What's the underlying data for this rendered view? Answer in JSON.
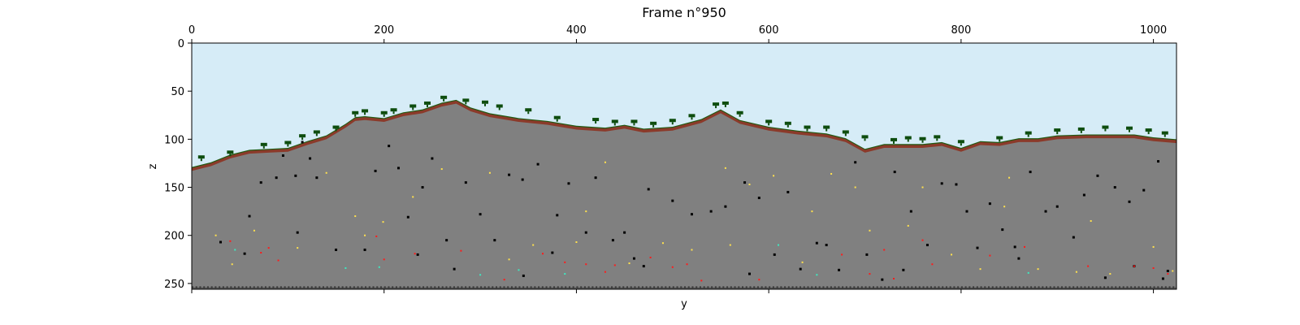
{
  "chart_data": {
    "type": "heatmap",
    "title": "Frame n°950",
    "xlabel": "y",
    "ylabel": "z",
    "xlim": [
      0,
      1024
    ],
    "ylim": [
      256,
      0
    ],
    "x_axis_position": "top",
    "x_ticks": [
      0,
      200,
      400,
      600,
      800,
      1000
    ],
    "y_ticks": [
      0,
      50,
      100,
      150,
      200,
      250
    ],
    "grid": false,
    "colors": {
      "sky": "#d6ecf7",
      "stone": "#808080",
      "dirt": "#8b3a2a",
      "grass": "#1f5a12",
      "tree": "#0e4d0e",
      "bedrock": "#5a5a5a",
      "ore_coal": "#000000",
      "ore_gold": "#ffe14d",
      "ore_redstone": "#ff1a1a",
      "ore_diamond": "#3ee8c0"
    },
    "surface_profile": {
      "x": [
        0,
        20,
        40,
        60,
        80,
        100,
        120,
        140,
        160,
        170,
        180,
        200,
        220,
        240,
        260,
        275,
        290,
        310,
        340,
        370,
        400,
        430,
        450,
        470,
        500,
        530,
        550,
        570,
        600,
        630,
        660,
        680,
        700,
        720,
        740,
        760,
        780,
        800,
        820,
        840,
        860,
        880,
        900,
        930,
        950,
        980,
        1000,
        1024
      ],
      "z": [
        130,
        125,
        117,
        112,
        111,
        110,
        103,
        97,
        85,
        78,
        77,
        79,
        73,
        70,
        63,
        60,
        68,
        74,
        79,
        82,
        87,
        89,
        86,
        90,
        88,
        80,
        70,
        81,
        88,
        92,
        95,
        100,
        111,
        106,
        106,
        106,
        104,
        110,
        103,
        104,
        100,
        100,
        97,
        96,
        96,
        96,
        99,
        101
      ]
    },
    "ores": {
      "coal": [
        [
          72,
          145
        ],
        [
          88,
          140
        ],
        [
          95,
          117
        ],
        [
          108,
          138
        ],
        [
          115,
          103
        ],
        [
          123,
          120
        ],
        [
          130,
          140
        ],
        [
          191,
          133
        ],
        [
          205,
          107
        ],
        [
          215,
          130
        ],
        [
          225,
          181
        ],
        [
          240,
          150
        ],
        [
          250,
          120
        ],
        [
          265,
          205
        ],
        [
          273,
          235
        ],
        [
          285,
          145
        ],
        [
          300,
          178
        ],
        [
          315,
          205
        ],
        [
          330,
          137
        ],
        [
          344,
          142
        ],
        [
          360,
          126
        ],
        [
          375,
          218
        ],
        [
          380,
          179
        ],
        [
          392,
          146
        ],
        [
          410,
          197
        ],
        [
          420,
          140
        ],
        [
          438,
          205
        ],
        [
          450,
          197
        ],
        [
          460,
          224
        ],
        [
          475,
          152
        ],
        [
          500,
          164
        ],
        [
          520,
          178
        ],
        [
          540,
          175
        ],
        [
          555,
          170
        ],
        [
          575,
          145
        ],
        [
          590,
          161
        ],
        [
          606,
          220
        ],
        [
          620,
          155
        ],
        [
          633,
          235
        ],
        [
          650,
          208
        ],
        [
          660,
          210
        ],
        [
          673,
          236
        ],
        [
          690,
          124
        ],
        [
          702,
          220
        ],
        [
          718,
          246
        ],
        [
          731,
          134
        ],
        [
          748,
          175
        ],
        [
          765,
          210
        ],
        [
          780,
          146
        ],
        [
          795,
          147
        ],
        [
          806,
          175
        ],
        [
          817,
          213
        ],
        [
          830,
          167
        ],
        [
          843,
          194
        ],
        [
          856,
          212
        ],
        [
          872,
          134
        ],
        [
          888,
          175
        ],
        [
          900,
          170
        ],
        [
          917,
          202
        ],
        [
          928,
          158
        ],
        [
          942,
          138
        ],
        [
          950,
          244
        ],
        [
          960,
          150
        ],
        [
          975,
          165
        ],
        [
          990,
          153
        ],
        [
          1005,
          123
        ],
        [
          1015,
          237
        ],
        [
          60,
          180
        ],
        [
          110,
          197
        ],
        [
          150,
          215
        ],
        [
          180,
          215
        ],
        [
          235,
          220
        ],
        [
          345,
          242
        ],
        [
          470,
          232
        ],
        [
          580,
          240
        ],
        [
          740,
          236
        ],
        [
          860,
          224
        ],
        [
          980,
          232
        ],
        [
          1010,
          245
        ],
        [
          30,
          207
        ],
        [
          55,
          219
        ]
      ],
      "gold": [
        [
          42,
          230
        ],
        [
          110,
          213
        ],
        [
          140,
          135
        ],
        [
          180,
          200
        ],
        [
          199,
          186
        ],
        [
          260,
          131
        ],
        [
          310,
          135
        ],
        [
          355,
          210
        ],
        [
          400,
          207
        ],
        [
          430,
          124
        ],
        [
          455,
          229
        ],
        [
          490,
          208
        ],
        [
          520,
          215
        ],
        [
          555,
          130
        ],
        [
          580,
          147
        ],
        [
          605,
          138
        ],
        [
          635,
          228
        ],
        [
          665,
          136
        ],
        [
          690,
          150
        ],
        [
          705,
          195
        ],
        [
          760,
          150
        ],
        [
          790,
          220
        ],
        [
          820,
          235
        ],
        [
          850,
          140
        ],
        [
          880,
          235
        ],
        [
          920,
          238
        ],
        [
          955,
          240
        ],
        [
          1000,
          212
        ],
        [
          1020,
          237
        ],
        [
          25,
          200
        ],
        [
          65,
          195
        ],
        [
          170,
          180
        ],
        [
          230,
          160
        ],
        [
          330,
          225
        ],
        [
          410,
          175
        ],
        [
          560,
          210
        ],
        [
          645,
          175
        ],
        [
          745,
          190
        ],
        [
          845,
          170
        ],
        [
          935,
          185
        ]
      ],
      "redstone": [
        [
          40,
          206
        ],
        [
          72,
          218
        ],
        [
          80,
          213
        ],
        [
          90,
          226
        ],
        [
          192,
          201
        ],
        [
          200,
          225
        ],
        [
          232,
          219
        ],
        [
          280,
          216
        ],
        [
          325,
          246
        ],
        [
          365,
          219
        ],
        [
          388,
          228
        ],
        [
          410,
          230
        ],
        [
          430,
          238
        ],
        [
          440,
          231
        ],
        [
          477,
          223
        ],
        [
          500,
          233
        ],
        [
          515,
          230
        ],
        [
          530,
          247
        ],
        [
          590,
          246
        ],
        [
          676,
          220
        ],
        [
          705,
          240
        ],
        [
          720,
          215
        ],
        [
          730,
          245
        ],
        [
          760,
          205
        ],
        [
          770,
          230
        ],
        [
          830,
          221
        ],
        [
          866,
          212
        ],
        [
          932,
          232
        ],
        [
          980,
          232
        ],
        [
          1000,
          234
        ],
        [
          1015,
          240
        ]
      ],
      "diamond": [
        [
          45,
          215
        ],
        [
          160,
          234
        ],
        [
          195,
          233
        ],
        [
          300,
          241
        ],
        [
          340,
          236
        ],
        [
          388,
          240
        ],
        [
          610,
          210
        ],
        [
          650,
          241
        ],
        [
          870,
          239
        ]
      ]
    },
    "trees": [
      [
        10,
        121
      ],
      [
        40,
        116
      ],
      [
        75,
        108
      ],
      [
        100,
        106
      ],
      [
        115,
        99
      ],
      [
        130,
        95
      ],
      [
        150,
        90
      ],
      [
        170,
        75
      ],
      [
        180,
        73
      ],
      [
        200,
        75
      ],
      [
        210,
        72
      ],
      [
        230,
        68
      ],
      [
        245,
        65
      ],
      [
        262,
        59
      ],
      [
        285,
        62
      ],
      [
        305,
        64
      ],
      [
        320,
        68
      ],
      [
        350,
        72
      ],
      [
        380,
        80
      ],
      [
        420,
        82
      ],
      [
        440,
        84
      ],
      [
        460,
        84
      ],
      [
        480,
        86
      ],
      [
        500,
        83
      ],
      [
        520,
        78
      ],
      [
        545,
        66
      ],
      [
        555,
        65
      ],
      [
        570,
        75
      ],
      [
        600,
        84
      ],
      [
        620,
        86
      ],
      [
        640,
        90
      ],
      [
        660,
        90
      ],
      [
        680,
        95
      ],
      [
        700,
        100
      ],
      [
        730,
        103
      ],
      [
        745,
        101
      ],
      [
        760,
        102
      ],
      [
        775,
        100
      ],
      [
        800,
        105
      ],
      [
        840,
        101
      ],
      [
        870,
        96
      ],
      [
        900,
        93
      ],
      [
        925,
        92
      ],
      [
        950,
        90
      ],
      [
        975,
        91
      ],
      [
        995,
        93
      ],
      [
        1012,
        96
      ]
    ]
  }
}
